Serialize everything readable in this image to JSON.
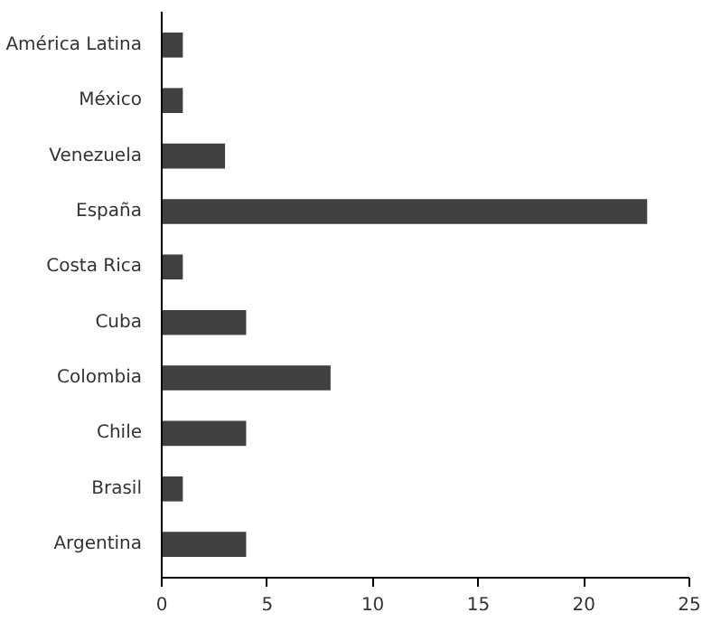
{
  "chart_data": {
    "type": "bar",
    "orientation": "horizontal",
    "categories": [
      "América Latina",
      "México",
      "Venezuela",
      "España",
      "Costa Rica",
      "Cuba",
      "Colombia",
      "Chile",
      "Brasil",
      "Argentina"
    ],
    "values": [
      1,
      1,
      3,
      23,
      1,
      4,
      8,
      4,
      1,
      4
    ],
    "color": "#404040",
    "xlim": [
      0,
      25
    ],
    "xticks": [
      0,
      5,
      10,
      15,
      20,
      25
    ],
    "grid": false
  }
}
